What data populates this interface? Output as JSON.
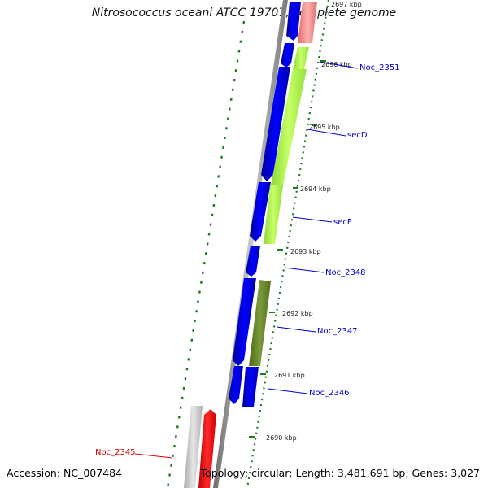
{
  "title": "Nitrosococcus oceani ATCC 19707, complete genome",
  "footer": {
    "accession": "Accession: NC_007484",
    "summary": "Topology: circular; Length: 3,481,691 bp; Genes: 3,027"
  },
  "ticks": [
    "2697 kbp",
    "2696 kbp",
    "2695 kbp",
    "2694 kbp",
    "2693 kbp",
    "2692 kbp",
    "2691 kbp",
    "2690 kbp"
  ],
  "gene_labels": [
    "Noc_2351",
    "secD",
    "secF",
    "Noc_2348",
    "Noc_2347",
    "Noc_2346",
    "Noc_2345"
  ],
  "colors": {
    "backbone": "#8c8c8c",
    "tick_marks": "#1f7a1f",
    "cds": "#0000ee",
    "secD_secF": "#a8f040",
    "Noc_2347": "#6b8a2e",
    "Noc_2351": "#f08080",
    "Noc_2345": "#ff0000",
    "gray_feature": "#c8c8c8",
    "label_blue": "#0000cc",
    "label_red": "#dd0000"
  }
}
